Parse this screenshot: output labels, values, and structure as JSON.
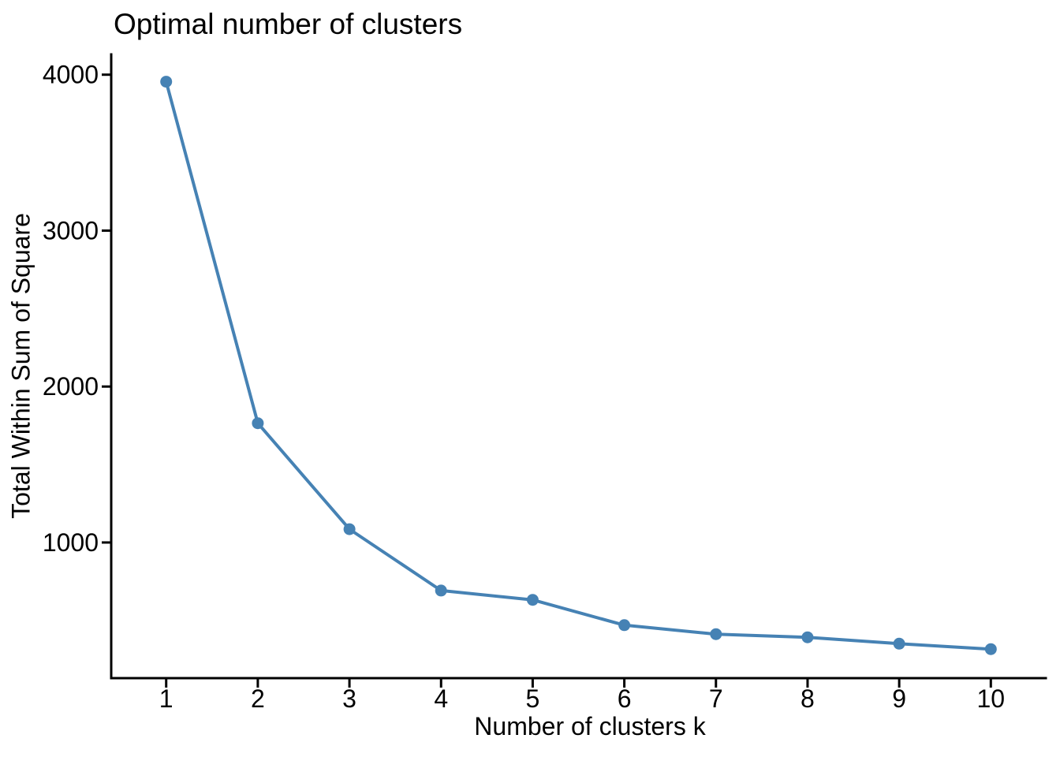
{
  "chart_data": {
    "type": "line",
    "title": "Optimal number of clusters",
    "xlabel": "Number of clusters k",
    "ylabel": "Total Within Sum of Square",
    "x": [
      1,
      2,
      3,
      4,
      5,
      6,
      7,
      8,
      9,
      10
    ],
    "series": [
      {
        "name": "Total within sum of square",
        "values": [
          3955,
          1765,
          1085,
          692,
          632,
          470,
          412,
          392,
          351,
          316
        ]
      }
    ],
    "x_ticks": [
      "1",
      "2",
      "3",
      "4",
      "5",
      "6",
      "7",
      "8",
      "9",
      "10"
    ],
    "y_ticks": [
      "1000",
      "2000",
      "3000",
      "4000"
    ],
    "y_tick_values": [
      1000,
      2000,
      3000,
      4000
    ],
    "xlim": [
      0.4,
      10.6
    ],
    "ylim": [
      130,
      4130
    ],
    "grid": false,
    "legend_position": "none",
    "line_color": "#4682B4",
    "point_color": "#4682B4",
    "axis_color": "#000000",
    "background_color": "#ffffff"
  }
}
